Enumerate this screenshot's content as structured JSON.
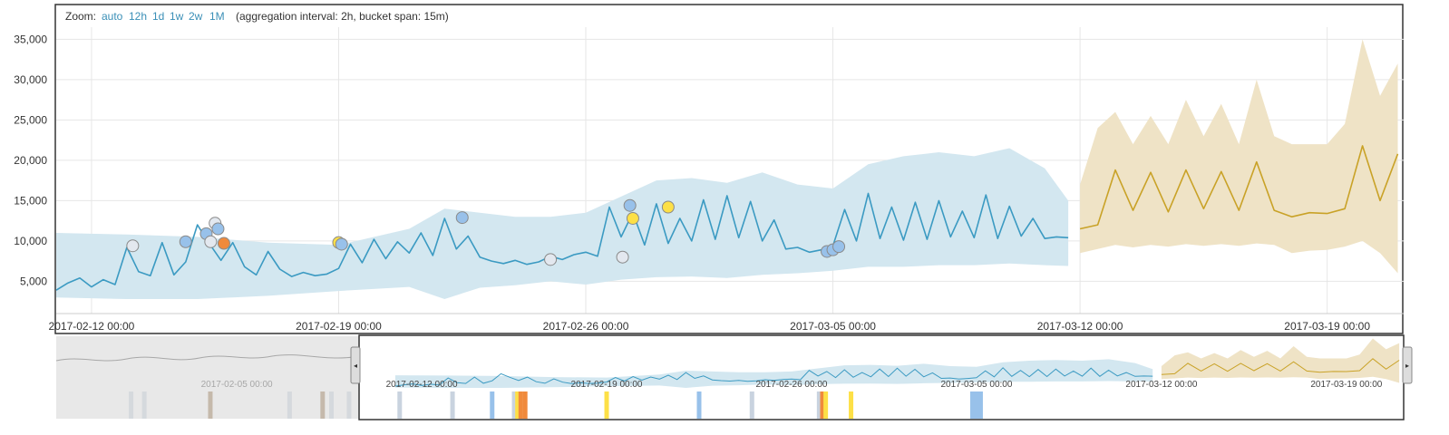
{
  "zoom": {
    "label": "Zoom:",
    "options": [
      "auto",
      "12h",
      "1d",
      "1w",
      "2w",
      "1M"
    ],
    "info": "(aggregation interval: 2h, bucket span: 15m)"
  },
  "colors": {
    "actual_line": "#3b9ac2",
    "model_band": "#d3e7f0",
    "forecast_line": "#c9a227",
    "forecast_band": "#efe3c6",
    "anomaly_critical": "#f08a3c",
    "anomaly_major": "#fde047",
    "anomaly_minor": "#98c1ea",
    "anomaly_warning": "#e3e8ef",
    "brush_mask": "#dcdcdc"
  },
  "chart_data": {
    "type": "line",
    "title": "",
    "xlabel": "",
    "ylabel": "",
    "xlim": [
      "2017-02-11 00:00",
      "2017-03-21 04:00"
    ],
    "ylim": [
      1000,
      36500
    ],
    "y_ticks": [
      "5,000",
      "10,000",
      "15,000",
      "20,000",
      "25,000",
      "30,000",
      "35,000"
    ],
    "x_ticks": [
      "2017-02-12 00:00",
      "2017-02-19 00:00",
      "2017-02-26 00:00",
      "2017-03-05 00:00",
      "2017-03-12 00:00",
      "2017-03-19 00:00"
    ],
    "grid": true,
    "series": [
      {
        "kind": "actual",
        "x": [
          "2017-02-11 00:00",
          "2017-02-11 08:00",
          "2017-02-11 16:00",
          "2017-02-12 00:00",
          "2017-02-12 08:00",
          "2017-02-12 16:00",
          "2017-02-13 00:00",
          "2017-02-13 08:00",
          "2017-02-13 16:00",
          "2017-02-14 00:00",
          "2017-02-14 08:00",
          "2017-02-14 16:00",
          "2017-02-15 00:00",
          "2017-02-15 08:00",
          "2017-02-15 16:00",
          "2017-02-16 00:00",
          "2017-02-16 08:00",
          "2017-02-16 16:00",
          "2017-02-17 00:00",
          "2017-02-17 08:00",
          "2017-02-17 16:00",
          "2017-02-18 00:00",
          "2017-02-18 08:00",
          "2017-02-18 16:00",
          "2017-02-19 00:00",
          "2017-02-19 08:00",
          "2017-02-19 16:00",
          "2017-02-20 00:00",
          "2017-02-20 08:00",
          "2017-02-20 16:00",
          "2017-02-21 00:00",
          "2017-02-21 08:00",
          "2017-02-21 16:00",
          "2017-02-22 00:00",
          "2017-02-22 08:00",
          "2017-02-22 16:00",
          "2017-02-23 00:00",
          "2017-02-23 08:00",
          "2017-02-23 16:00",
          "2017-02-24 00:00",
          "2017-02-24 08:00",
          "2017-02-24 16:00",
          "2017-02-25 00:00",
          "2017-02-25 08:00",
          "2017-02-25 16:00",
          "2017-02-26 00:00",
          "2017-02-26 08:00",
          "2017-02-26 16:00",
          "2017-02-27 00:00",
          "2017-02-27 08:00",
          "2017-02-27 16:00",
          "2017-02-28 00:00",
          "2017-02-28 08:00",
          "2017-02-28 16:00",
          "2017-03-01 00:00",
          "2017-03-01 08:00",
          "2017-03-01 16:00",
          "2017-03-02 00:00",
          "2017-03-02 08:00",
          "2017-03-02 16:00",
          "2017-03-03 00:00",
          "2017-03-03 08:00",
          "2017-03-03 16:00",
          "2017-03-04 00:00",
          "2017-03-04 08:00",
          "2017-03-04 16:00",
          "2017-03-05 00:00",
          "2017-03-05 08:00",
          "2017-03-05 16:00",
          "2017-03-06 00:00",
          "2017-03-06 08:00",
          "2017-03-06 16:00",
          "2017-03-07 00:00",
          "2017-03-07 08:00",
          "2017-03-07 16:00",
          "2017-03-08 00:00",
          "2017-03-08 08:00",
          "2017-03-08 16:00",
          "2017-03-09 00:00",
          "2017-03-09 08:00",
          "2017-03-09 16:00",
          "2017-03-10 00:00",
          "2017-03-10 08:00",
          "2017-03-10 16:00",
          "2017-03-11 00:00",
          "2017-03-11 08:00",
          "2017-03-11 16:00"
        ],
        "y": [
          3900,
          4800,
          5400,
          4300,
          5200,
          4600,
          9200,
          6200,
          5700,
          9800,
          5800,
          7400,
          12000,
          9700,
          7600,
          9800,
          6800,
          5800,
          8700,
          6500,
          5600,
          6100,
          5700,
          5900,
          6600,
          9600,
          7300,
          10200,
          7800,
          9900,
          8500,
          11000,
          8200,
          12800,
          9000,
          10600,
          8000,
          7500,
          7200,
          7600,
          7100,
          7400,
          8100,
          7700,
          8300,
          8600,
          8100,
          14200,
          10500,
          13500,
          9500,
          14600,
          9700,
          12800,
          10000,
          15100,
          10200,
          15600,
          10400,
          14900,
          10000,
          12600,
          9000,
          9200,
          8600,
          8900,
          9400,
          13900,
          10000,
          15900,
          10300,
          14200,
          10100,
          14800,
          10200,
          15000,
          10500,
          13700,
          10400,
          15700,
          10300,
          14300,
          10600,
          12800,
          10300,
          10500,
          10400
        ]
      },
      {
        "kind": "model_bounds",
        "x": [
          "2017-02-11 00:00",
          "2017-02-13 00:00",
          "2017-02-15 00:00",
          "2017-02-17 00:00",
          "2017-02-19 00:00",
          "2017-02-21 00:00",
          "2017-02-22 00:00",
          "2017-02-23 00:00",
          "2017-02-24 00:00",
          "2017-02-25 00:00",
          "2017-02-26 00:00",
          "2017-02-27 00:00",
          "2017-02-28 00:00",
          "2017-03-01 00:00",
          "2017-03-02 00:00",
          "2017-03-03 00:00",
          "2017-03-04 00:00",
          "2017-03-05 00:00",
          "2017-03-06 00:00",
          "2017-03-07 00:00",
          "2017-03-08 00:00",
          "2017-03-09 00:00",
          "2017-03-10 00:00",
          "2017-03-11 00:00",
          "2017-03-11 16:00"
        ],
        "upper": [
          11000,
          10800,
          10500,
          9800,
          9500,
          11500,
          14000,
          13500,
          13000,
          13000,
          13500,
          15500,
          17500,
          17800,
          17200,
          18500,
          17000,
          16500,
          19500,
          20500,
          21000,
          20500,
          21500,
          19000,
          15000
        ],
        "lower": [
          3000,
          2800,
          2800,
          3200,
          3800,
          4300,
          2800,
          4200,
          4500,
          5000,
          4600,
          5200,
          5500,
          5600,
          5400,
          5800,
          6000,
          6300,
          6800,
          6800,
          7000,
          7000,
          7200,
          7000,
          6900
        ]
      },
      {
        "kind": "forecast",
        "x": [
          "2017-03-12 00:00",
          "2017-03-12 12:00",
          "2017-03-13 00:00",
          "2017-03-13 12:00",
          "2017-03-14 00:00",
          "2017-03-14 12:00",
          "2017-03-15 00:00",
          "2017-03-15 12:00",
          "2017-03-16 00:00",
          "2017-03-16 12:00",
          "2017-03-17 00:00",
          "2017-03-17 12:00",
          "2017-03-18 00:00",
          "2017-03-18 12:00",
          "2017-03-19 00:00",
          "2017-03-19 12:00",
          "2017-03-20 00:00",
          "2017-03-20 12:00",
          "2017-03-21 00:00"
        ],
        "y": [
          11500,
          12000,
          18800,
          13800,
          18500,
          13600,
          18800,
          14000,
          18600,
          13800,
          19800,
          13800,
          13000,
          13500,
          13400,
          14000,
          21800,
          15000,
          20800
        ],
        "upper": [
          17000,
          24000,
          26000,
          22000,
          25500,
          22000,
          27500,
          23000,
          27000,
          22000,
          30000,
          23000,
          22000,
          22000,
          22000,
          24500,
          35000,
          28000,
          32000
        ],
        "lower": [
          8500,
          9000,
          9500,
          9200,
          9500,
          9300,
          9600,
          9400,
          9600,
          9400,
          9700,
          9500,
          8500,
          8800,
          8900,
          9300,
          10000,
          8500,
          6000
        ]
      }
    ],
    "anomalies": [
      {
        "x": "2017-02-13 04:00",
        "y": 9400,
        "severity": "warning"
      },
      {
        "x": "2017-02-14 16:00",
        "y": 9900,
        "severity": "minor"
      },
      {
        "x": "2017-02-15 06:00",
        "y": 10900,
        "severity": "minor"
      },
      {
        "x": "2017-02-15 12:00",
        "y": 12200,
        "severity": "warning"
      },
      {
        "x": "2017-02-15 14:00",
        "y": 11500,
        "severity": "minor"
      },
      {
        "x": "2017-02-15 09:00",
        "y": 9900,
        "severity": "warning"
      },
      {
        "x": "2017-02-15 18:00",
        "y": 9700,
        "severity": "critical"
      },
      {
        "x": "2017-02-19 00:00",
        "y": 9800,
        "severity": "major"
      },
      {
        "x": "2017-02-19 02:00",
        "y": 9600,
        "severity": "minor"
      },
      {
        "x": "2017-02-22 12:00",
        "y": 12900,
        "severity": "minor"
      },
      {
        "x": "2017-02-25 00:00",
        "y": 7700,
        "severity": "warning"
      },
      {
        "x": "2017-02-27 01:00",
        "y": 8000,
        "severity": "warning"
      },
      {
        "x": "2017-02-27 06:00",
        "y": 14400,
        "severity": "minor"
      },
      {
        "x": "2017-02-27 08:00",
        "y": 12800,
        "severity": "major"
      },
      {
        "x": "2017-02-28 08:00",
        "y": 14200,
        "severity": "major"
      },
      {
        "x": "2017-03-04 20:00",
        "y": 8700,
        "severity": "minor"
      },
      {
        "x": "2017-03-05 00:00",
        "y": 8900,
        "severity": "minor"
      },
      {
        "x": "2017-03-05 04:00",
        "y": 9300,
        "severity": "minor"
      }
    ]
  },
  "context_chart": {
    "x_ticks": [
      "2017-02-05 00:00",
      "2017-02-12 00:00",
      "2017-02-19 00:00",
      "2017-02-26 00:00",
      "2017-03-05 00:00",
      "2017-03-12 00:00",
      "2017-03-19 00:00"
    ],
    "swimlane": [
      {
        "x": "2017-02-01 00:00",
        "severity": "warning"
      },
      {
        "x": "2017-02-01 12:00",
        "severity": "warning"
      },
      {
        "x": "2017-02-04 00:00",
        "severity": "major_dark"
      },
      {
        "x": "2017-02-07 00:00",
        "severity": "warning"
      },
      {
        "x": "2017-02-08 06:00",
        "severity": "major_dark"
      },
      {
        "x": "2017-02-08 14:00",
        "severity": "warning"
      },
      {
        "x": "2017-02-09 06:00",
        "severity": "warning"
      },
      {
        "x": "2017-02-11 04:00",
        "severity": "warning"
      },
      {
        "x": "2017-02-13 04:00",
        "severity": "warning"
      },
      {
        "x": "2017-02-14 16:00",
        "severity": "minor"
      },
      {
        "x": "2017-02-15 12:00",
        "severity": "warning"
      },
      {
        "x": "2017-02-15 15:00",
        "severity": "major"
      },
      {
        "x": "2017-02-15 18:00",
        "severity": "critical"
      },
      {
        "x": "2017-02-15 22:00",
        "severity": "critical"
      },
      {
        "x": "2017-02-19 00:00",
        "severity": "major"
      },
      {
        "x": "2017-02-22 12:00",
        "severity": "minor"
      },
      {
        "x": "2017-02-24 12:00",
        "severity": "warning"
      },
      {
        "x": "2017-02-27 01:00",
        "severity": "warning"
      },
      {
        "x": "2017-02-27 04:00",
        "severity": "critical"
      },
      {
        "x": "2017-02-27 07:00",
        "severity": "major"
      },
      {
        "x": "2017-02-28 06:00",
        "severity": "major"
      },
      {
        "x": "2017-03-05 00:00",
        "severity": "minor_wide"
      }
    ]
  }
}
